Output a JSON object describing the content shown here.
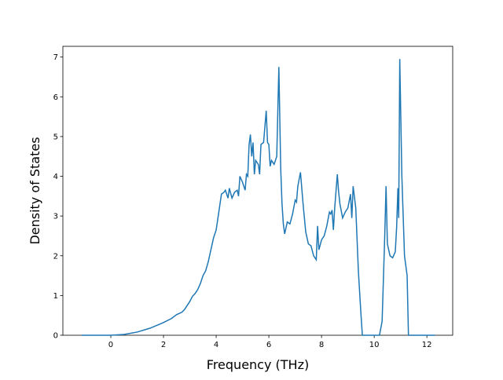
{
  "chart_data": {
    "type": "line",
    "x_label": "Frequency (THz)",
    "y_label": "Density of States",
    "x": [
      -1.1,
      0,
      0.5,
      1,
      1.5,
      2,
      2.3,
      2.5,
      2.6,
      2.7,
      2.8,
      2.9,
      3.0,
      3.1,
      3.2,
      3.3,
      3.4,
      3.5,
      3.6,
      3.7,
      3.8,
      3.9,
      4.0,
      4.1,
      4.2,
      4.3,
      4.35,
      4.45,
      4.5,
      4.6,
      4.7,
      4.8,
      4.85,
      4.9,
      5.0,
      5.1,
      5.15,
      5.2,
      5.25,
      5.3,
      5.35,
      5.4,
      5.45,
      5.5,
      5.6,
      5.65,
      5.7,
      5.8,
      5.9,
      5.95,
      6.0,
      6.05,
      6.1,
      6.2,
      6.3,
      6.38,
      6.45,
      6.5,
      6.55,
      6.6,
      6.7,
      6.8,
      6.9,
      7.0,
      7.05,
      7.1,
      7.2,
      7.3,
      7.4,
      7.5,
      7.6,
      7.7,
      7.8,
      7.85,
      7.9,
      8.0,
      8.1,
      8.2,
      8.3,
      8.35,
      8.4,
      8.45,
      8.5,
      8.6,
      8.65,
      8.7,
      8.8,
      8.9,
      9.0,
      9.1,
      9.15,
      9.2,
      9.3,
      9.4,
      9.5,
      9.55,
      10.2,
      10.3,
      10.4,
      10.45,
      10.5,
      10.6,
      10.7,
      10.8,
      10.85,
      10.9,
      10.93,
      10.97,
      11.05,
      11.15,
      11.25,
      11.3,
      12.3
    ],
    "series": [
      {
        "color": "#1f77b4",
        "values": [
          0,
          0,
          0.02,
          0.08,
          0.18,
          0.32,
          0.42,
          0.52,
          0.55,
          0.58,
          0.65,
          0.75,
          0.85,
          0.98,
          1.05,
          1.15,
          1.3,
          1.5,
          1.62,
          1.85,
          2.15,
          2.45,
          2.65,
          3.1,
          3.55,
          3.6,
          3.65,
          3.45,
          3.7,
          3.45,
          3.6,
          3.65,
          3.5,
          4.0,
          3.85,
          3.65,
          4.05,
          4.0,
          4.8,
          5.05,
          4.5,
          4.85,
          4.05,
          4.4,
          4.3,
          4.05,
          4.8,
          4.85,
          5.65,
          4.85,
          4.8,
          4.25,
          4.4,
          4.3,
          4.5,
          6.75,
          4.2,
          3.3,
          2.8,
          2.55,
          2.85,
          2.8,
          3.05,
          3.4,
          3.35,
          3.75,
          4.1,
          3.3,
          2.6,
          2.3,
          2.25,
          2.0,
          1.9,
          2.75,
          2.15,
          2.4,
          2.5,
          2.75,
          3.1,
          3.05,
          3.15,
          2.65,
          3.2,
          4.05,
          3.6,
          3.3,
          2.95,
          3.1,
          3.2,
          3.55,
          2.95,
          3.75,
          3.2,
          1.6,
          0.5,
          0,
          0,
          0.35,
          2.5,
          3.75,
          2.3,
          2.0,
          1.95,
          2.1,
          2.7,
          3.7,
          2.95,
          6.95,
          4.0,
          2.0,
          1.5,
          0,
          0
        ]
      }
    ],
    "xlim": [
      -1.82,
      12.98
    ],
    "ylim": [
      0,
      7.27
    ],
    "xticks": [
      0,
      2,
      4,
      6,
      8,
      10,
      12
    ],
    "yticks": [
      0,
      1,
      2,
      3,
      4,
      5,
      6,
      7
    ]
  }
}
